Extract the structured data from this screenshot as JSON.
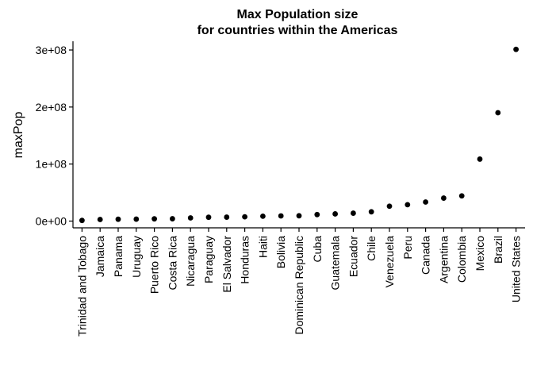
{
  "chart_data": {
    "type": "scatter",
    "title_line1": "Max Population size",
    "title_line2": "for countries within the Americas",
    "xlabel": "",
    "ylabel": "maxPop",
    "ylim": [
      0,
      300000000
    ],
    "yticks": [
      {
        "value": 0,
        "label": "0e+00"
      },
      {
        "value": 100000000,
        "label": "1e+08"
      },
      {
        "value": 200000000,
        "label": "2e+08"
      },
      {
        "value": 300000000,
        "label": "3e+08"
      }
    ],
    "grid": false,
    "legend": "none",
    "point_color": "#000000",
    "categories": [
      "Trinidad and Tobago",
      "Jamaica",
      "Panama",
      "Uruguay",
      "Puerto Rico",
      "Costa Rica",
      "Nicaragua",
      "Paraguay",
      "El Salvador",
      "Honduras",
      "Haiti",
      "Bolivia",
      "Dominican Republic",
      "Cuba",
      "Guatemala",
      "Ecuador",
      "Chile",
      "Venezuela",
      "Peru",
      "Canada",
      "Argentina",
      "Colombia",
      "Mexico",
      "Brazil",
      "United States"
    ],
    "values": [
      1100000,
      2800000,
      3200000,
      3400000,
      3900000,
      4100000,
      5600000,
      6700000,
      6900000,
      7500000,
      8500000,
      9100000,
      9300000,
      11400000,
      12600000,
      13800000,
      16300000,
      26100000,
      28700000,
      33400000,
      40300000,
      44200000,
      108700000,
      190000000,
      301100000
    ]
  }
}
